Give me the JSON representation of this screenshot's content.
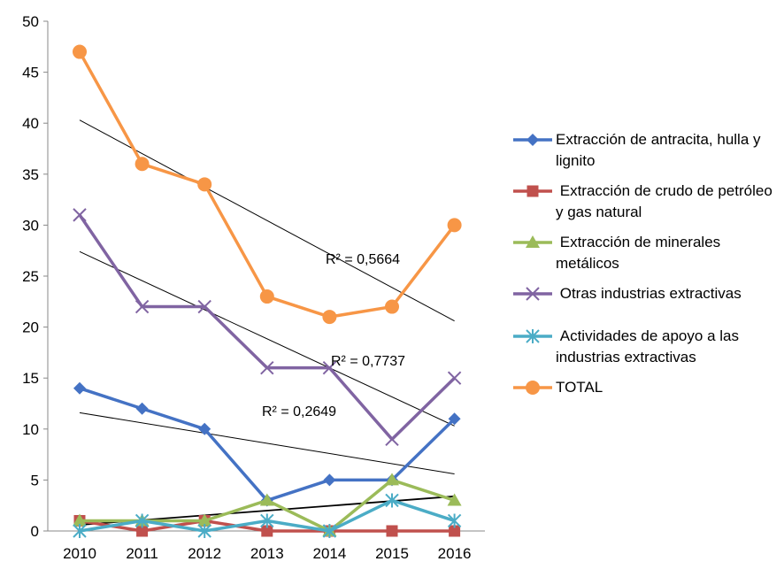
{
  "chart_data": {
    "type": "line",
    "categories": [
      "2010",
      "2011",
      "2012",
      "2013",
      "2014",
      "2015",
      "2016"
    ],
    "ylim": [
      0,
      50
    ],
    "yticks": [
      0,
      5,
      10,
      15,
      20,
      25,
      30,
      35,
      40,
      45,
      50
    ],
    "grid": false,
    "legend_position": "right",
    "series": [
      {
        "name": "Extracción de antracita, hulla y lignito",
        "values": [
          14,
          12,
          10,
          3,
          5,
          5,
          11
        ],
        "color": "#4472C4",
        "marker": "diamond"
      },
      {
        "name": " Extracción de crudo de petróleo y gas natural",
        "values": [
          1,
          0,
          1,
          0,
          0,
          0,
          0
        ],
        "color": "#C0504D",
        "marker": "square"
      },
      {
        "name": " Extracción de minerales metálicos",
        "values": [
          1,
          1,
          1,
          3,
          0,
          5,
          3
        ],
        "color": "#9BBB59",
        "marker": "triangle"
      },
      {
        "name": " Otras industrias extractivas",
        "values": [
          31,
          22,
          22,
          16,
          16,
          9,
          15
        ],
        "color": "#8064A2",
        "marker": "x"
      },
      {
        "name": " Actividades de apoyo a las industrias extractivas",
        "values": [
          0,
          1,
          0,
          1,
          0,
          3,
          1
        ],
        "color": "#4BACC6",
        "marker": "star"
      },
      {
        "name": "TOTAL",
        "values": [
          47,
          36,
          34,
          23,
          21,
          22,
          30
        ],
        "color": "#F79646",
        "marker": "circle"
      }
    ],
    "trendlines": [
      {
        "series": "TOTAL",
        "start": 40.3,
        "end": 20.6,
        "r2_label": "R² = 0,5664"
      },
      {
        "series": "Otras industrias extractivas",
        "start": 27.4,
        "end": 10.3,
        "r2_label": "R² = 0,7737"
      },
      {
        "series": "Extracción de antracita, hulla y lignito",
        "start": 11.6,
        "end": 5.6,
        "r2_label": "R² = 0,2649"
      },
      {
        "series": "Actividades de apoyo a las industrias extractivas",
        "start": 0.6,
        "end": 3.4,
        "r2_label": ""
      }
    ]
  }
}
